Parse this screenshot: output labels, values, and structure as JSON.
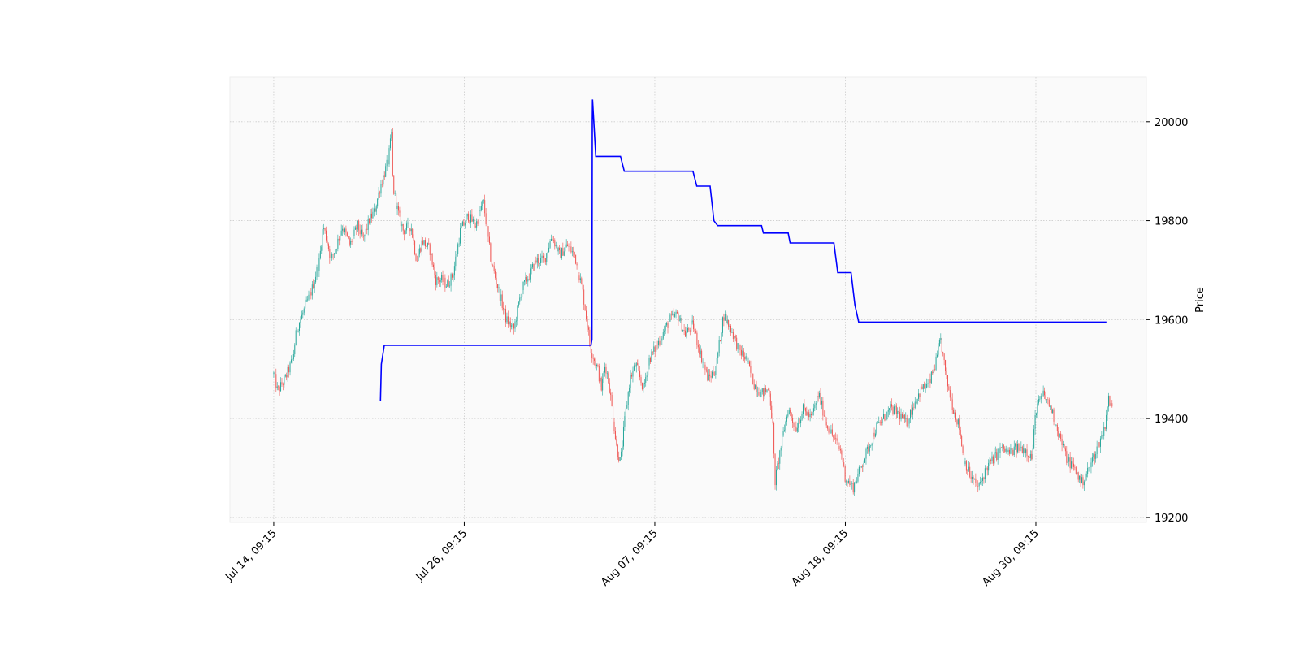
{
  "chart_data": {
    "type": "candlestick",
    "ylabel": "Price",
    "ylim": [
      19190,
      20090
    ],
    "y_ticks": [
      19200,
      19400,
      19600,
      19800,
      20000
    ],
    "y_axis_side": "right",
    "x_range": [
      -0.23,
      4.58
    ],
    "x_ticks": [
      {
        "label": "Jul 14, 09:15",
        "pos": 0
      },
      {
        "label": "Jul 26, 09:15",
        "pos": 1
      },
      {
        "label": "Aug 07, 09:15",
        "pos": 2
      },
      {
        "label": "Aug 18, 09:15",
        "pos": 3
      },
      {
        "label": "Aug 30, 09:15",
        "pos": 4
      }
    ],
    "grid": true,
    "grid_style": "dotted",
    "colors": {
      "up": "#26a69a",
      "down": "#ef5350",
      "overlay_line": "#0000ff",
      "plot_background": "#fafafa",
      "grid": "#cccccc"
    },
    "price_path": [
      [
        0.0,
        19490
      ],
      [
        0.02,
        19455
      ],
      [
        0.06,
        19480
      ],
      [
        0.1,
        19520
      ],
      [
        0.12,
        19580
      ],
      [
        0.16,
        19620
      ],
      [
        0.2,
        19660
      ],
      [
        0.24,
        19720
      ],
      [
        0.26,
        19790
      ],
      [
        0.28,
        19760
      ],
      [
        0.3,
        19720
      ],
      [
        0.33,
        19750
      ],
      [
        0.36,
        19790
      ],
      [
        0.4,
        19750
      ],
      [
        0.44,
        19790
      ],
      [
        0.47,
        19760
      ],
      [
        0.5,
        19800
      ],
      [
        0.53,
        19820
      ],
      [
        0.56,
        19870
      ],
      [
        0.6,
        19920
      ],
      [
        0.62,
        19980
      ],
      [
        0.625,
        19870
      ],
      [
        0.65,
        19820
      ],
      [
        0.68,
        19780
      ],
      [
        0.72,
        19790
      ],
      [
        0.75,
        19720
      ],
      [
        0.78,
        19760
      ],
      [
        0.82,
        19740
      ],
      [
        0.85,
        19680
      ],
      [
        0.88,
        19680
      ],
      [
        0.91,
        19670
      ],
      [
        0.94,
        19690
      ],
      [
        0.98,
        19780
      ],
      [
        1.02,
        19810
      ],
      [
        1.06,
        19790
      ],
      [
        1.1,
        19840
      ],
      [
        1.14,
        19720
      ],
      [
        1.18,
        19660
      ],
      [
        1.22,
        19600
      ],
      [
        1.26,
        19580
      ],
      [
        1.3,
        19660
      ],
      [
        1.34,
        19690
      ],
      [
        1.38,
        19720
      ],
      [
        1.42,
        19720
      ],
      [
        1.46,
        19770
      ],
      [
        1.5,
        19730
      ],
      [
        1.54,
        19750
      ],
      [
        1.58,
        19730
      ],
      [
        1.62,
        19660
      ],
      [
        1.65,
        19580
      ],
      [
        1.66,
        19545
      ],
      [
        1.7,
        19500
      ],
      [
        1.72,
        19460
      ],
      [
        1.74,
        19510
      ],
      [
        1.76,
        19470
      ],
      [
        1.8,
        19340
      ],
      [
        1.82,
        19310
      ],
      [
        1.84,
        19390
      ],
      [
        1.87,
        19480
      ],
      [
        1.9,
        19510
      ],
      [
        1.94,
        19460
      ],
      [
        1.97,
        19520
      ],
      [
        2.0,
        19540
      ],
      [
        2.04,
        19570
      ],
      [
        2.08,
        19600
      ],
      [
        2.12,
        19610
      ],
      [
        2.16,
        19570
      ],
      [
        2.2,
        19590
      ],
      [
        2.24,
        19530
      ],
      [
        2.28,
        19480
      ],
      [
        2.32,
        19500
      ],
      [
        2.36,
        19610
      ],
      [
        2.4,
        19580
      ],
      [
        2.44,
        19540
      ],
      [
        2.48,
        19520
      ],
      [
        2.52,
        19470
      ],
      [
        2.56,
        19450
      ],
      [
        2.6,
        19460
      ],
      [
        2.62,
        19380
      ],
      [
        2.63,
        19270
      ],
      [
        2.66,
        19340
      ],
      [
        2.7,
        19420
      ],
      [
        2.74,
        19380
      ],
      [
        2.78,
        19420
      ],
      [
        2.82,
        19400
      ],
      [
        2.86,
        19450
      ],
      [
        2.9,
        19390
      ],
      [
        2.94,
        19360
      ],
      [
        2.98,
        19330
      ],
      [
        3.0,
        19280
      ],
      [
        3.04,
        19260
      ],
      [
        3.08,
        19300
      ],
      [
        3.12,
        19340
      ],
      [
        3.16,
        19380
      ],
      [
        3.2,
        19400
      ],
      [
        3.24,
        19420
      ],
      [
        3.28,
        19410
      ],
      [
        3.32,
        19390
      ],
      [
        3.36,
        19430
      ],
      [
        3.4,
        19460
      ],
      [
        3.44,
        19470
      ],
      [
        3.48,
        19520
      ],
      [
        3.5,
        19560
      ],
      [
        3.53,
        19480
      ],
      [
        3.56,
        19430
      ],
      [
        3.6,
        19380
      ],
      [
        3.62,
        19320
      ],
      [
        3.66,
        19280
      ],
      [
        3.7,
        19260
      ],
      [
        3.74,
        19300
      ],
      [
        3.78,
        19320
      ],
      [
        3.82,
        19340
      ],
      [
        3.86,
        19330
      ],
      [
        3.9,
        19340
      ],
      [
        3.94,
        19340
      ],
      [
        3.98,
        19320
      ],
      [
        4.0,
        19420
      ],
      [
        4.04,
        19450
      ],
      [
        4.08,
        19420
      ],
      [
        4.12,
        19370
      ],
      [
        4.16,
        19320
      ],
      [
        4.2,
        19300
      ],
      [
        4.24,
        19270
      ],
      [
        4.28,
        19300
      ],
      [
        4.32,
        19340
      ],
      [
        4.36,
        19380
      ],
      [
        4.38,
        19440
      ],
      [
        4.4,
        19420
      ]
    ],
    "series": [
      {
        "type": "line",
        "points": [
          [
            0.56,
            19435
          ],
          [
            0.565,
            19510
          ],
          [
            0.58,
            19548
          ],
          [
            1.665,
            19548
          ],
          [
            1.67,
            19560
          ],
          [
            1.672,
            20000
          ],
          [
            1.673,
            20045
          ],
          [
            1.69,
            19930
          ],
          [
            1.82,
            19930
          ],
          [
            1.84,
            19900
          ],
          [
            2.2,
            19900
          ],
          [
            2.22,
            19870
          ],
          [
            2.29,
            19870
          ],
          [
            2.31,
            19800
          ],
          [
            2.33,
            19790
          ],
          [
            2.56,
            19790
          ],
          [
            2.57,
            19775
          ],
          [
            2.7,
            19775
          ],
          [
            2.71,
            19755
          ],
          [
            2.94,
            19755
          ],
          [
            2.96,
            19695
          ],
          [
            3.03,
            19695
          ],
          [
            3.05,
            19630
          ],
          [
            3.07,
            19595
          ],
          [
            4.37,
            19595
          ]
        ]
      }
    ]
  }
}
